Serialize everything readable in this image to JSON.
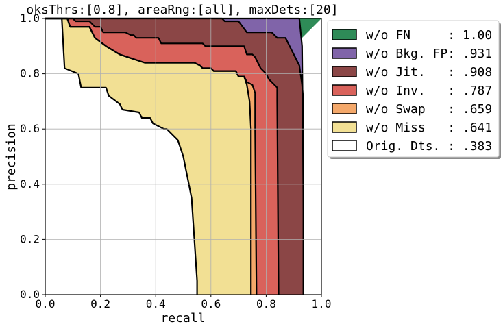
{
  "chart_data": {
    "type": "area",
    "title": "oksThrs:[0.8], areaRng:[all], maxDets:[20]",
    "xlabel": "recall",
    "ylabel": "precision",
    "xlim": [
      0.0,
      1.0
    ],
    "ylim": [
      0.0,
      1.0
    ],
    "grid": true,
    "legend_position": "outside-right-top",
    "x_ticks": [
      "0.0",
      "0.2",
      "0.4",
      "0.6",
      "0.8",
      "1.0"
    ],
    "y_ticks": [
      "0.0",
      "0.2",
      "0.4",
      "0.6",
      "0.8",
      "1.0"
    ],
    "legend": [
      {
        "label": "w/o FN     : 1.00",
        "color": "#2e8b57"
      },
      {
        "label": "w/o Bkg. FP: .931",
        "color": "#8064a9"
      },
      {
        "label": "w/o Jit.   : .908",
        "color": "#8b4646"
      },
      {
        "label": "w/o Inv.   : .787",
        "color": "#d9625b"
      },
      {
        "label": "w/o Swap   : .659",
        "color": "#f4a86a"
      },
      {
        "label": "w/o Miss   : .641",
        "color": "#f2e094"
      },
      {
        "label": "Orig. Dts. : .383",
        "color": "#ffffff"
      }
    ],
    "series": [
      {
        "name": "w/o FN",
        "color": "#2e8b57",
        "x": [
          0.0,
          1.0
        ],
        "y": [
          1.0,
          1.0
        ]
      },
      {
        "name": "w/o Bkg. FP",
        "color": "#8064a9",
        "x": [
          0.0,
          0.92,
          0.93,
          0.932,
          0.935,
          0.935
        ],
        "y": [
          1.0,
          1.0,
          0.9,
          0.7,
          0.3,
          0.0
        ]
      },
      {
        "name": "w/o Jit.",
        "color": "#8b4646",
        "x": [
          0.0,
          0.64,
          0.65,
          0.7,
          0.73,
          0.82,
          0.83,
          0.84,
          0.87,
          0.9,
          0.92,
          0.93,
          0.935,
          0.935
        ],
        "y": [
          1.0,
          1.0,
          0.99,
          0.99,
          0.95,
          0.95,
          0.94,
          0.93,
          0.93,
          0.87,
          0.83,
          0.76,
          0.7,
          0.0
        ]
      },
      {
        "name": "w/o Inv.",
        "color": "#d9625b",
        "x": [
          0.0,
          0.1,
          0.11,
          0.16,
          0.18,
          0.2,
          0.21,
          0.29,
          0.31,
          0.32,
          0.33,
          0.41,
          0.42,
          0.57,
          0.58,
          0.72,
          0.73,
          0.75,
          0.76,
          0.78,
          0.8,
          0.81,
          0.84,
          0.84,
          0.845
        ],
        "y": [
          1.0,
          1.0,
          0.99,
          0.99,
          0.97,
          0.97,
          0.95,
          0.95,
          0.94,
          0.94,
          0.93,
          0.93,
          0.91,
          0.91,
          0.9,
          0.9,
          0.87,
          0.87,
          0.86,
          0.82,
          0.8,
          0.78,
          0.75,
          0.7,
          0.0
        ]
      },
      {
        "name": "w/o Swap",
        "color": "#f4a86a",
        "x": [
          0.0,
          0.08,
          0.09,
          0.16,
          0.18,
          0.22,
          0.27,
          0.36,
          0.54,
          0.56,
          0.57,
          0.6,
          0.61,
          0.69,
          0.7,
          0.72,
          0.73,
          0.75,
          0.76,
          0.76,
          0.765
        ],
        "y": [
          1.0,
          1.0,
          0.97,
          0.97,
          0.93,
          0.9,
          0.87,
          0.84,
          0.84,
          0.83,
          0.82,
          0.82,
          0.81,
          0.81,
          0.79,
          0.79,
          0.77,
          0.76,
          0.73,
          0.6,
          0.0
        ]
      },
      {
        "name": "w/o Miss",
        "color": "#f2e094",
        "x": [
          0.0,
          0.08,
          0.09,
          0.16,
          0.18,
          0.22,
          0.27,
          0.36,
          0.54,
          0.56,
          0.57,
          0.6,
          0.61,
          0.69,
          0.7,
          0.72,
          0.73,
          0.74,
          0.745,
          0.745
        ],
        "y": [
          1.0,
          1.0,
          0.97,
          0.97,
          0.93,
          0.9,
          0.87,
          0.84,
          0.84,
          0.83,
          0.82,
          0.82,
          0.81,
          0.81,
          0.79,
          0.79,
          0.76,
          0.7,
          0.6,
          0.0
        ]
      },
      {
        "name": "Orig. Dts.",
        "color": "#ffffff",
        "x": [
          0.0,
          0.06,
          0.07,
          0.12,
          0.13,
          0.22,
          0.23,
          0.27,
          0.28,
          0.34,
          0.35,
          0.38,
          0.39,
          0.43,
          0.44,
          0.48,
          0.49,
          0.5,
          0.51,
          0.52,
          0.53,
          0.54,
          0.55,
          0.55
        ],
        "y": [
          1.0,
          1.0,
          0.82,
          0.8,
          0.75,
          0.75,
          0.72,
          0.69,
          0.67,
          0.66,
          0.64,
          0.64,
          0.62,
          0.6,
          0.6,
          0.56,
          0.53,
          0.5,
          0.45,
          0.4,
          0.35,
          0.2,
          0.05,
          0.0
        ]
      }
    ]
  }
}
